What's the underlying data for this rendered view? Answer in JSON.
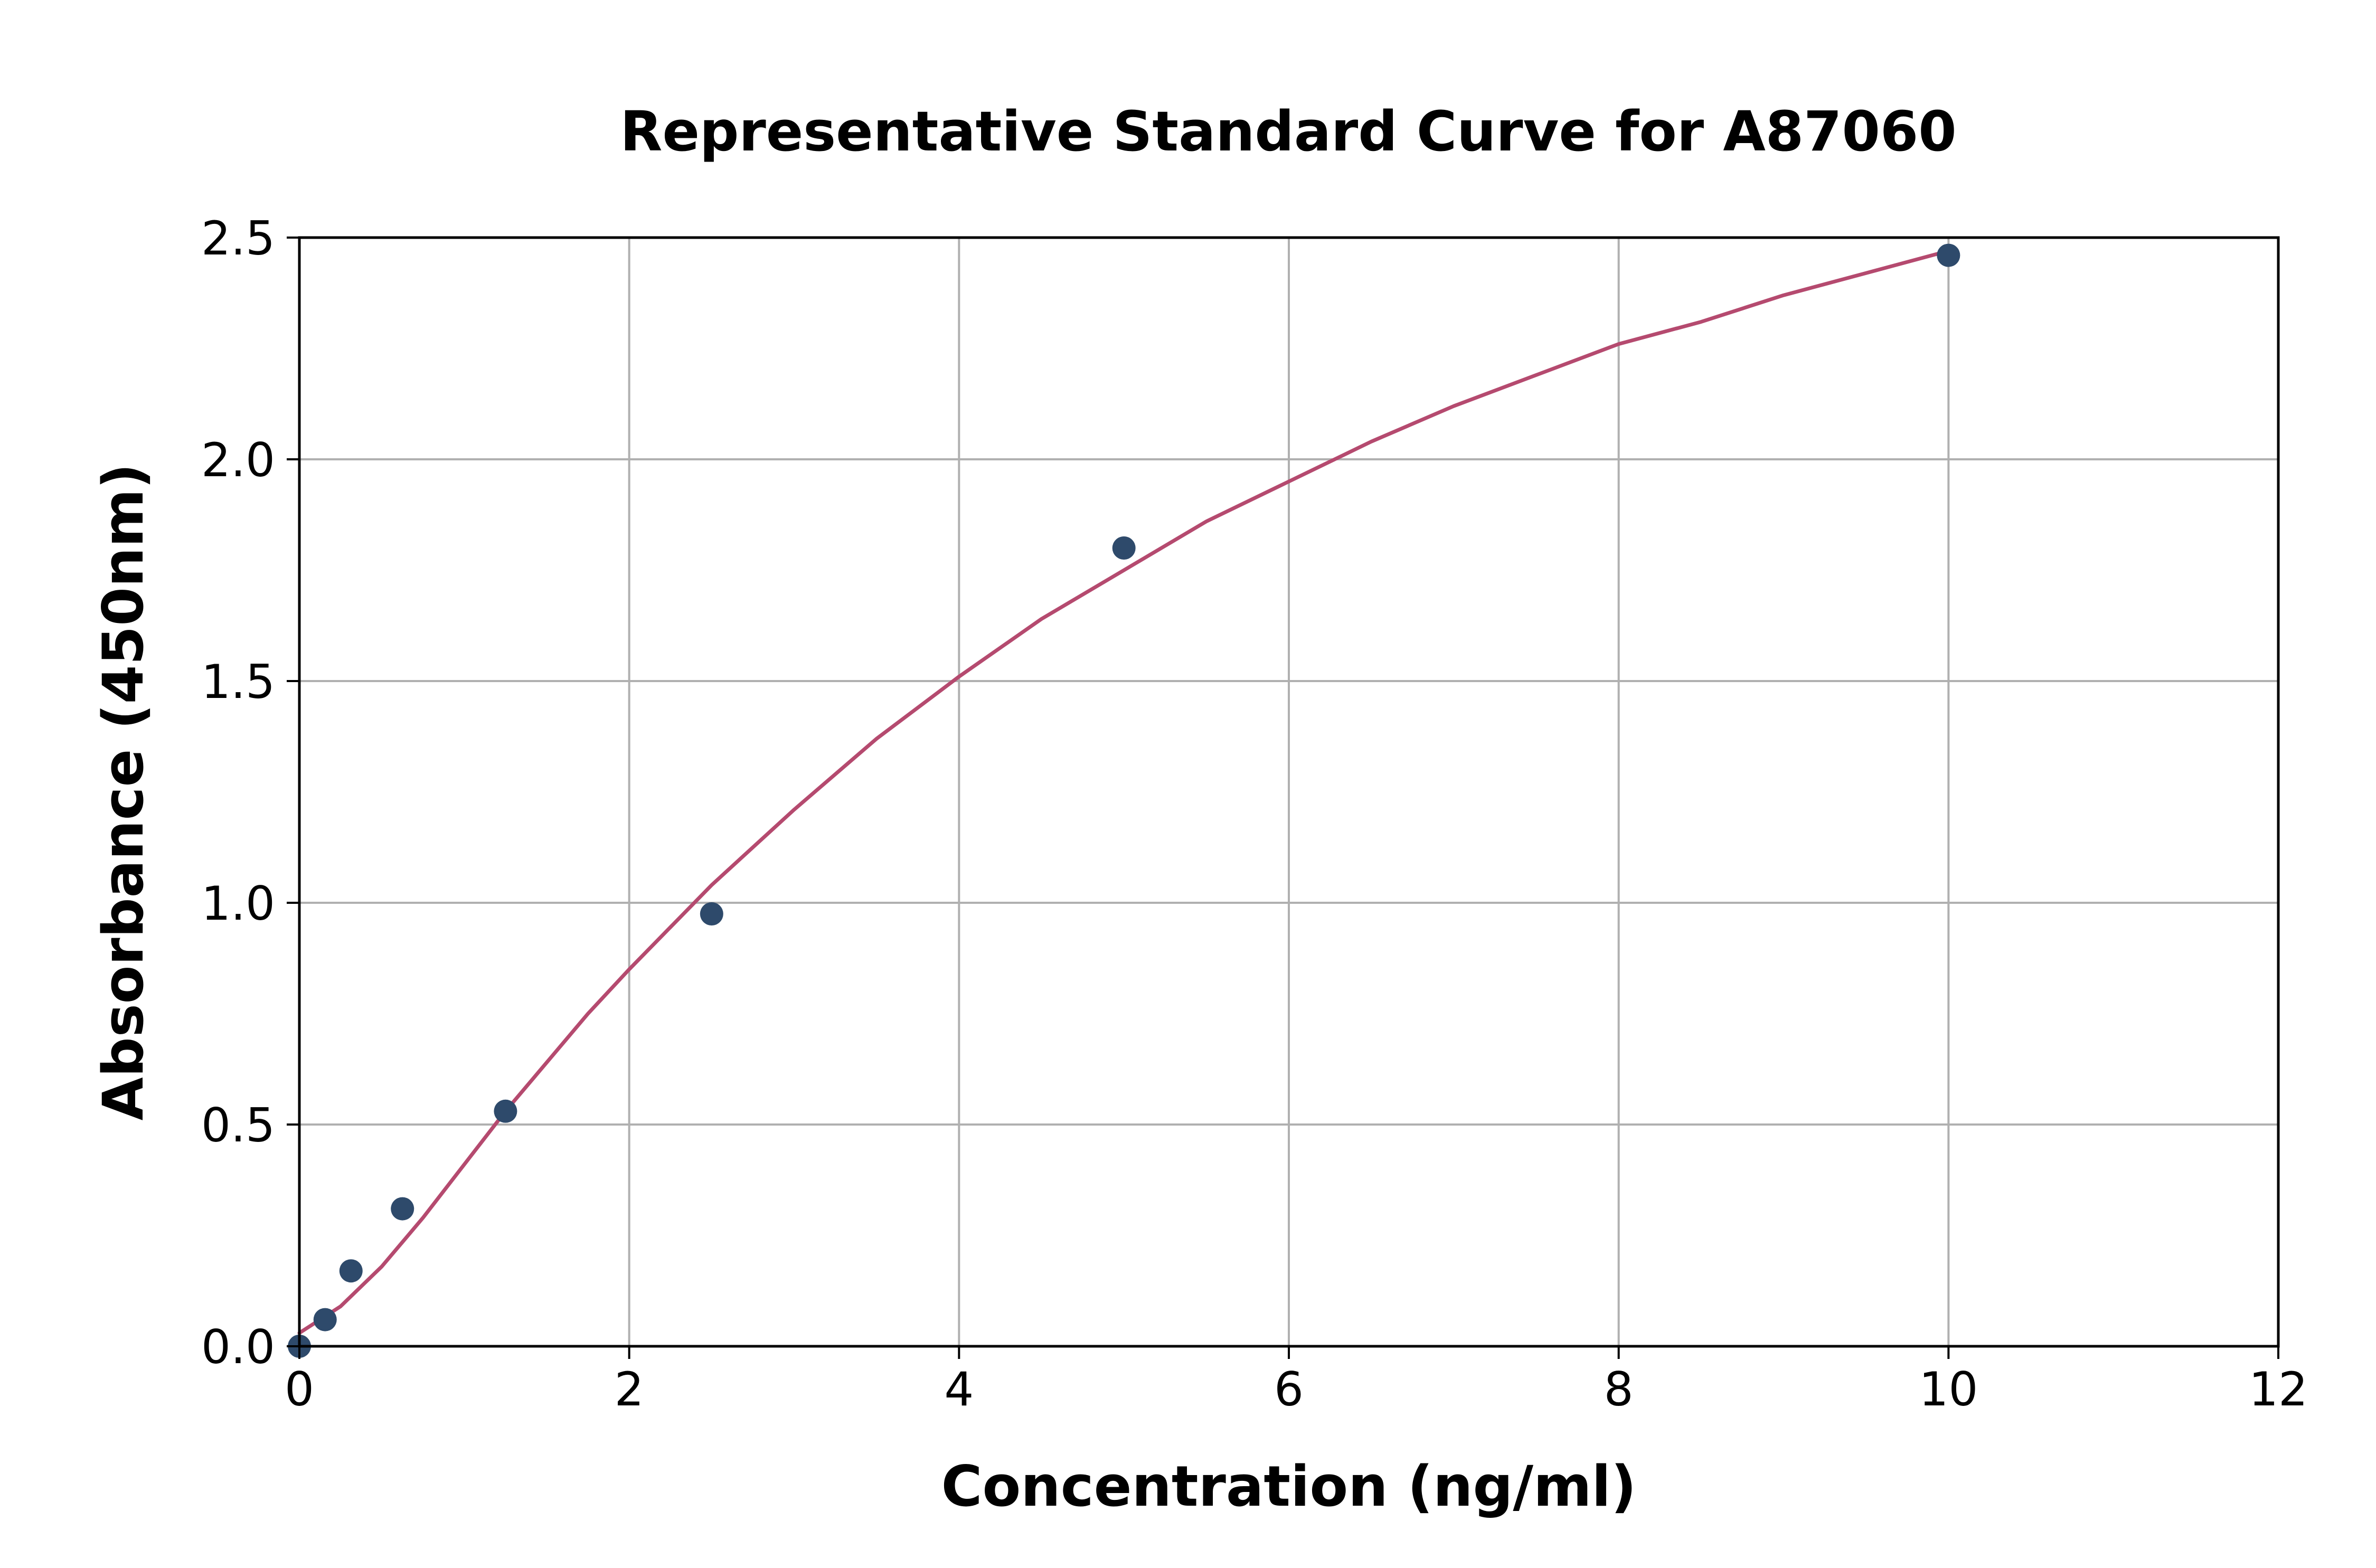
{
  "chart_data": {
    "type": "scatter",
    "title": "Representative Standard Curve for A87060",
    "xlabel": "Concentration (ng/ml)",
    "ylabel": "Absorbance (450nm)",
    "xlim": [
      0,
      12
    ],
    "ylim": [
      0,
      2.5
    ],
    "xticks": [
      0,
      2,
      4,
      6,
      8,
      10,
      12
    ],
    "yticks": [
      0.0,
      0.5,
      1.0,
      1.5,
      2.0,
      2.5
    ],
    "xtick_labels": [
      "0",
      "2",
      "4",
      "6",
      "8",
      "10",
      "12"
    ],
    "ytick_labels": [
      "0.0",
      "0.5",
      "1.0",
      "1.5",
      "2.0",
      "2.5"
    ],
    "grid": true,
    "legend": "none",
    "colors": {
      "points": "#2e4a6b",
      "curve": "#b54a6f",
      "grid": "#b0b0b0",
      "axes": "#000000"
    },
    "series": [
      {
        "type": "scatter",
        "x": [
          0,
          0.156,
          0.313,
          0.625,
          1.25,
          2.5,
          5,
          10
        ],
        "y": [
          0.0,
          0.06,
          0.17,
          0.31,
          0.53,
          0.975,
          1.8,
          2.46
        ]
      },
      {
        "type": "line",
        "x": [
          0,
          0.25,
          0.5,
          0.75,
          1.0,
          1.25,
          1.5,
          1.75,
          2.0,
          2.5,
          3.0,
          3.5,
          4.0,
          4.5,
          5.0,
          5.5,
          6.0,
          6.5,
          7.0,
          7.5,
          8.0,
          8.5,
          9.0,
          9.5,
          10.0
        ],
        "y": [
          0.03,
          0.09,
          0.18,
          0.29,
          0.41,
          0.53,
          0.64,
          0.75,
          0.85,
          1.04,
          1.21,
          1.37,
          1.51,
          1.64,
          1.75,
          1.86,
          1.95,
          2.04,
          2.12,
          2.19,
          2.26,
          2.31,
          2.37,
          2.42,
          2.47
        ]
      }
    ]
  }
}
